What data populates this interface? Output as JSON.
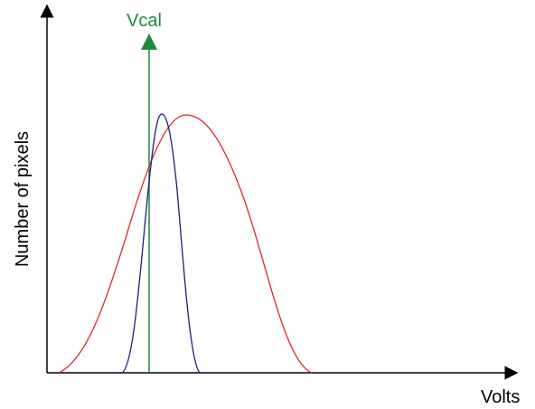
{
  "labels": {
    "x_axis": "Volts",
    "y_axis": "Number of pixels",
    "marker": "Vcal"
  },
  "colors": {
    "axis": "#000000",
    "marker": "#1f8a3a",
    "narrow_curve": "#1b1f7a",
    "wide_curve": "#e0262a"
  }
}
